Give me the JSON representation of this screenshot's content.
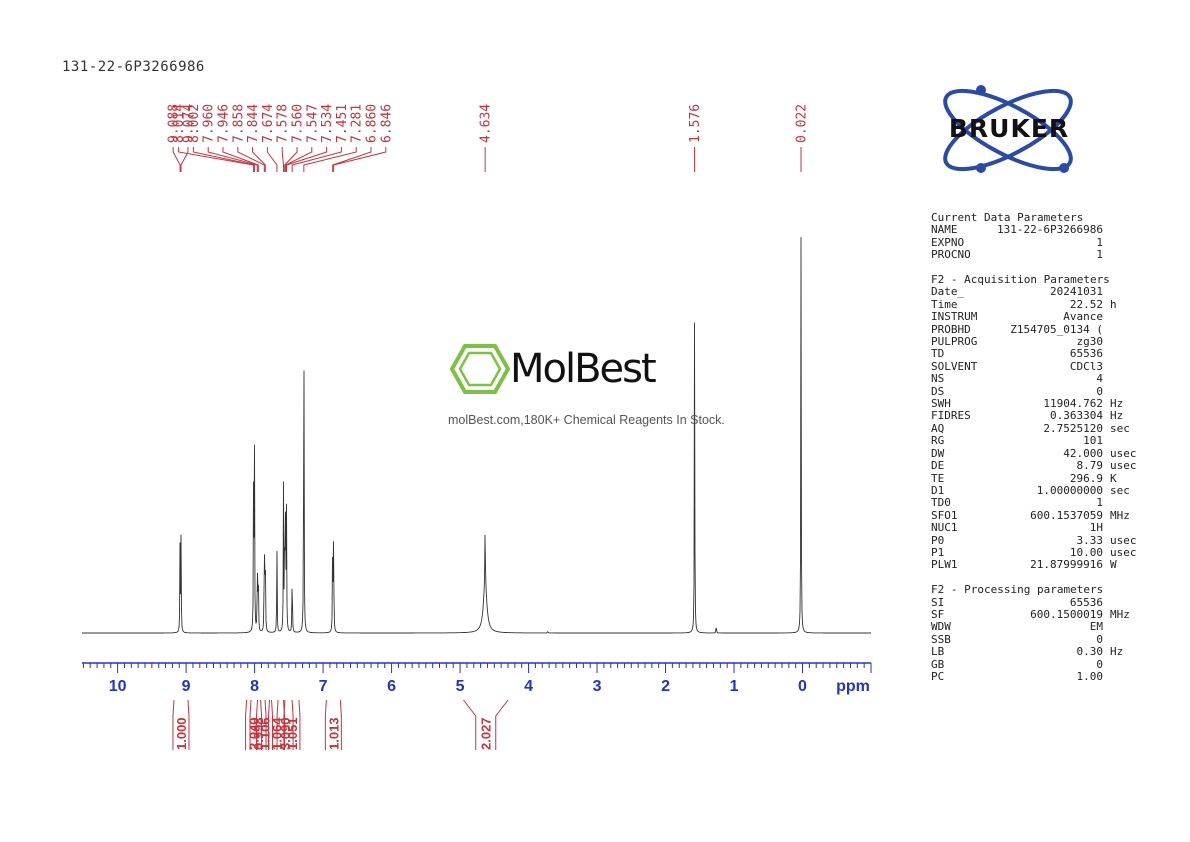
{
  "sample_title": "131-22-6P3266986",
  "chart_data": {
    "type": "line",
    "title": "",
    "xlabel": "ppm",
    "xlim": [
      10.52,
      -1.0
    ],
    "x_reversed": true,
    "x_ticks": [
      10,
      9,
      8,
      7,
      6,
      5,
      4,
      3,
      2,
      1,
      0
    ],
    "ylim": [
      0,
      1
    ],
    "peak_labels": [
      "9.088",
      "9.074",
      "8.014",
      "8.002",
      "7.960",
      "7.946",
      "7.858",
      "7.844",
      "7.674",
      "7.578",
      "7.560",
      "7.547",
      "7.534",
      "7.451",
      "7.281",
      "6.860",
      "6.846",
      "4.634",
      "1.576",
      "0.022"
    ],
    "peaks": [
      {
        "ppm": 9.088,
        "height": 0.21
      },
      {
        "ppm": 9.074,
        "height": 0.21
      },
      {
        "ppm": 8.014,
        "height": 0.41
      },
      {
        "ppm": 8.002,
        "height": 0.4
      },
      {
        "ppm": 7.96,
        "height": 0.17
      },
      {
        "ppm": 7.946,
        "height": 0.17
      },
      {
        "ppm": 7.858,
        "height": 0.24
      },
      {
        "ppm": 7.844,
        "height": 0.24
      },
      {
        "ppm": 7.674,
        "height": 0.2
      },
      {
        "ppm": 7.578,
        "height": 0.32
      },
      {
        "ppm": 7.56,
        "height": 0.3
      },
      {
        "ppm": 7.547,
        "height": 0.28
      },
      {
        "ppm": 7.534,
        "height": 0.26
      },
      {
        "ppm": 7.451,
        "height": 0.16
      },
      {
        "ppm": 7.281,
        "height": 0.85
      },
      {
        "ppm": 6.86,
        "height": 0.24
      },
      {
        "ppm": 6.846,
        "height": 0.24
      },
      {
        "ppm": 4.634,
        "height": 0.14
      },
      {
        "ppm": 1.576,
        "height": 0.75
      },
      {
        "ppm": 1.26,
        "height": 0.02
      },
      {
        "ppm": 3.72,
        "height": 0.005
      },
      {
        "ppm": 0.022,
        "height": 0.88
      }
    ],
    "integrals": [
      {
        "label": "1.000",
        "from": 9.15,
        "to": 9.0
      },
      {
        "label": "2.040",
        "from": 8.05,
        "to": 7.98
      },
      {
        "label": "0.998",
        "from": 7.98,
        "to": 7.92
      },
      {
        "label": "1.106",
        "from": 7.9,
        "to": 7.81
      },
      {
        "label": "1.064",
        "from": 7.72,
        "to": 7.64
      },
      {
        "label": "3.090",
        "from": 7.61,
        "to": 7.5
      },
      {
        "label": "1.051",
        "from": 7.49,
        "to": 7.42
      },
      {
        "label": "1.013",
        "from": 6.9,
        "to": 6.8
      },
      {
        "label": "2.027",
        "from": 4.95,
        "to": 4.3
      }
    ]
  },
  "params": {
    "group1_title": "Current Data Parameters",
    "group1": [
      {
        "k": "NAME",
        "v": "131-22-6P3266986",
        "u": ""
      },
      {
        "k": "EXPNO",
        "v": "1",
        "u": ""
      },
      {
        "k": "PROCNO",
        "v": "1",
        "u": ""
      }
    ],
    "group2_title": "F2 - Acquisition Parameters",
    "group2": [
      {
        "k": "Date_",
        "v": "20241031",
        "u": ""
      },
      {
        "k": "Time",
        "v": "22.52",
        "u": "h"
      },
      {
        "k": "INSTRUM",
        "v": "Avance",
        "u": ""
      },
      {
        "k": "PROBHD",
        "v": "Z154705_0134 (",
        "u": ""
      },
      {
        "k": "PULPROG",
        "v": "zg30",
        "u": ""
      },
      {
        "k": "TD",
        "v": "65536",
        "u": ""
      },
      {
        "k": "SOLVENT",
        "v": "CDCl3",
        "u": ""
      },
      {
        "k": "NS",
        "v": "4",
        "u": ""
      },
      {
        "k": "DS",
        "v": "0",
        "u": ""
      },
      {
        "k": "SWH",
        "v": "11904.762",
        "u": "Hz"
      },
      {
        "k": "FIDRES",
        "v": "0.363304",
        "u": "Hz"
      },
      {
        "k": "AQ",
        "v": "2.7525120",
        "u": "sec"
      },
      {
        "k": "RG",
        "v": "101",
        "u": ""
      },
      {
        "k": "DW",
        "v": "42.000",
        "u": "usec"
      },
      {
        "k": "DE",
        "v": "8.79",
        "u": "usec"
      },
      {
        "k": "TE",
        "v": "296.9",
        "u": "K"
      },
      {
        "k": "D1",
        "v": "1.00000000",
        "u": "sec"
      },
      {
        "k": "TD0",
        "v": "1",
        "u": ""
      },
      {
        "k": "SFO1",
        "v": "600.1537059",
        "u": "MHz"
      },
      {
        "k": "NUC1",
        "v": "1H",
        "u": ""
      },
      {
        "k": "P0",
        "v": "3.33",
        "u": "usec"
      },
      {
        "k": "P1",
        "v": "10.00",
        "u": "usec"
      },
      {
        "k": "PLW1",
        "v": "21.87999916",
        "u": "W"
      }
    ],
    "group3_title": "F2 - Processing parameters",
    "group3": [
      {
        "k": "SI",
        "v": "65536",
        "u": ""
      },
      {
        "k": "SF",
        "v": "600.1500019",
        "u": "MHz"
      },
      {
        "k": "WDW",
        "v": "EM",
        "u": ""
      },
      {
        "k": "SSB",
        "v": "0",
        "u": ""
      },
      {
        "k": "LB",
        "v": "0.30",
        "u": "Hz"
      },
      {
        "k": "GB",
        "v": "0",
        "u": ""
      },
      {
        "k": "PC",
        "v": "1.00",
        "u": ""
      }
    ]
  },
  "brand": {
    "name": "BRUKER"
  },
  "watermark": {
    "name": "MolBest",
    "tagline": "molBest.com,180K+ Chemical Reagents In Stock."
  },
  "colors": {
    "peak_label": "#c8323c",
    "axis": "#2233cc",
    "integral": "#c8323c",
    "trace": "#333333",
    "logo_green": "#7cc242",
    "logo_blue": "#2a4aa8"
  }
}
